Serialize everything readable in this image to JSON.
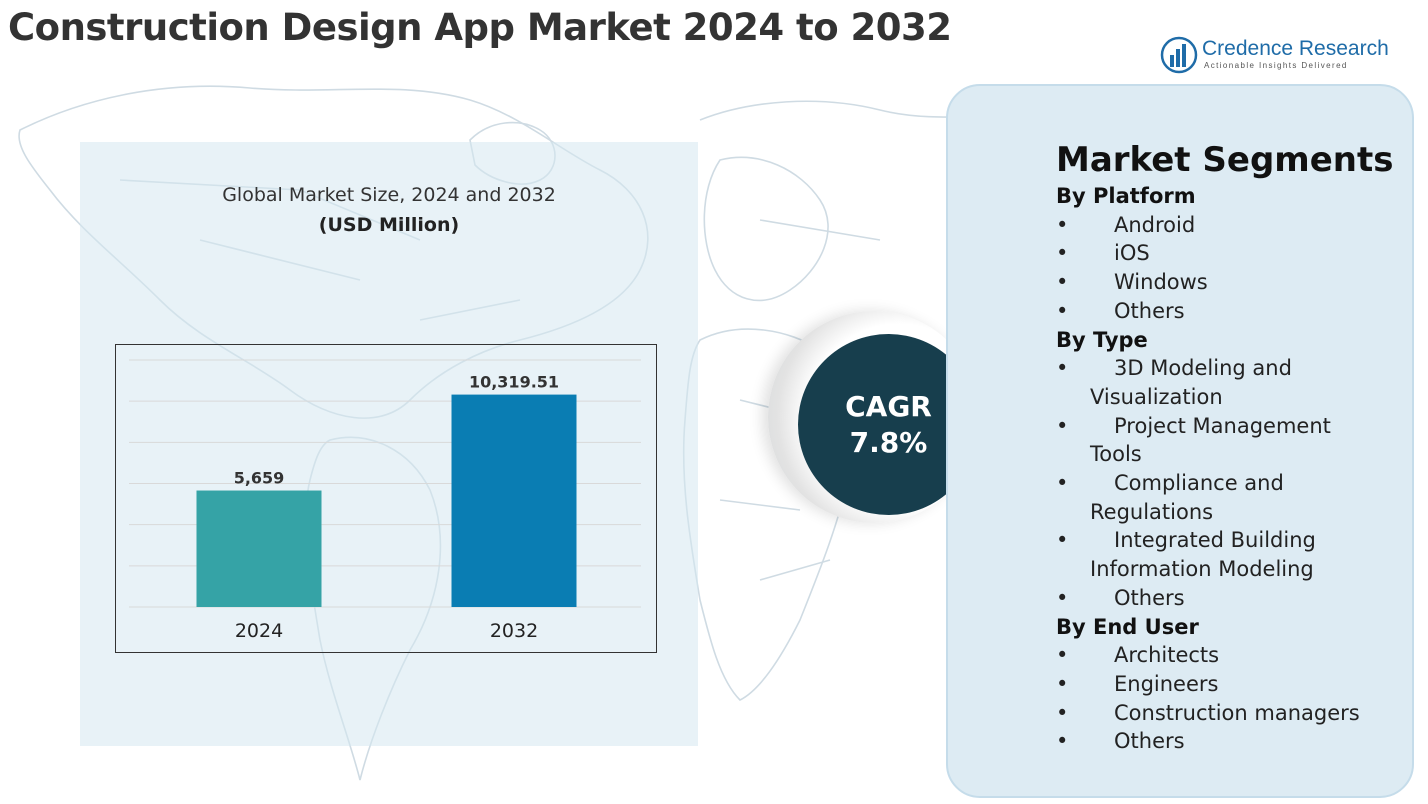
{
  "header": {
    "title": "Construction Design App Market 2024 to 2032"
  },
  "logo": {
    "name": "Credence Research",
    "tagline": "Actionable Insights Delivered",
    "icon": "bar-chart-logo-icon"
  },
  "colors": {
    "bar_2024": "#35a3a6",
    "bar_2032": "#0a7db3",
    "cagr_circle": "#173e4d",
    "segments_panel": "#ddebf3",
    "title": "#333333"
  },
  "chart_data": {
    "type": "bar",
    "title": "Global Market Size, 2024 and 2032",
    "unit": "(USD Million)",
    "categories": [
      "2024",
      "2032"
    ],
    "values": [
      5659,
      10319.51
    ],
    "value_labels": [
      "5,659",
      "10,319.51"
    ],
    "ylim": [
      0,
      12000
    ],
    "grid": true,
    "xlabel": "",
    "ylabel": ""
  },
  "cagr": {
    "label": "CAGR",
    "value": "7.8%"
  },
  "segments": {
    "title": "Market Segments",
    "groups": [
      {
        "heading": "By Platform",
        "items": [
          "Android",
          "iOS",
          "Windows",
          "Others"
        ]
      },
      {
        "heading": "By Type",
        "items": [
          "3D Modeling and\nVisualization",
          "Project Management\nTools",
          "Compliance and\nRegulations",
          "Integrated Building\nInformation Modeling",
          "Others"
        ]
      },
      {
        "heading": "By End User",
        "items": [
          "Architects",
          "Engineers",
          "Construction managers",
          "Others"
        ]
      }
    ]
  }
}
